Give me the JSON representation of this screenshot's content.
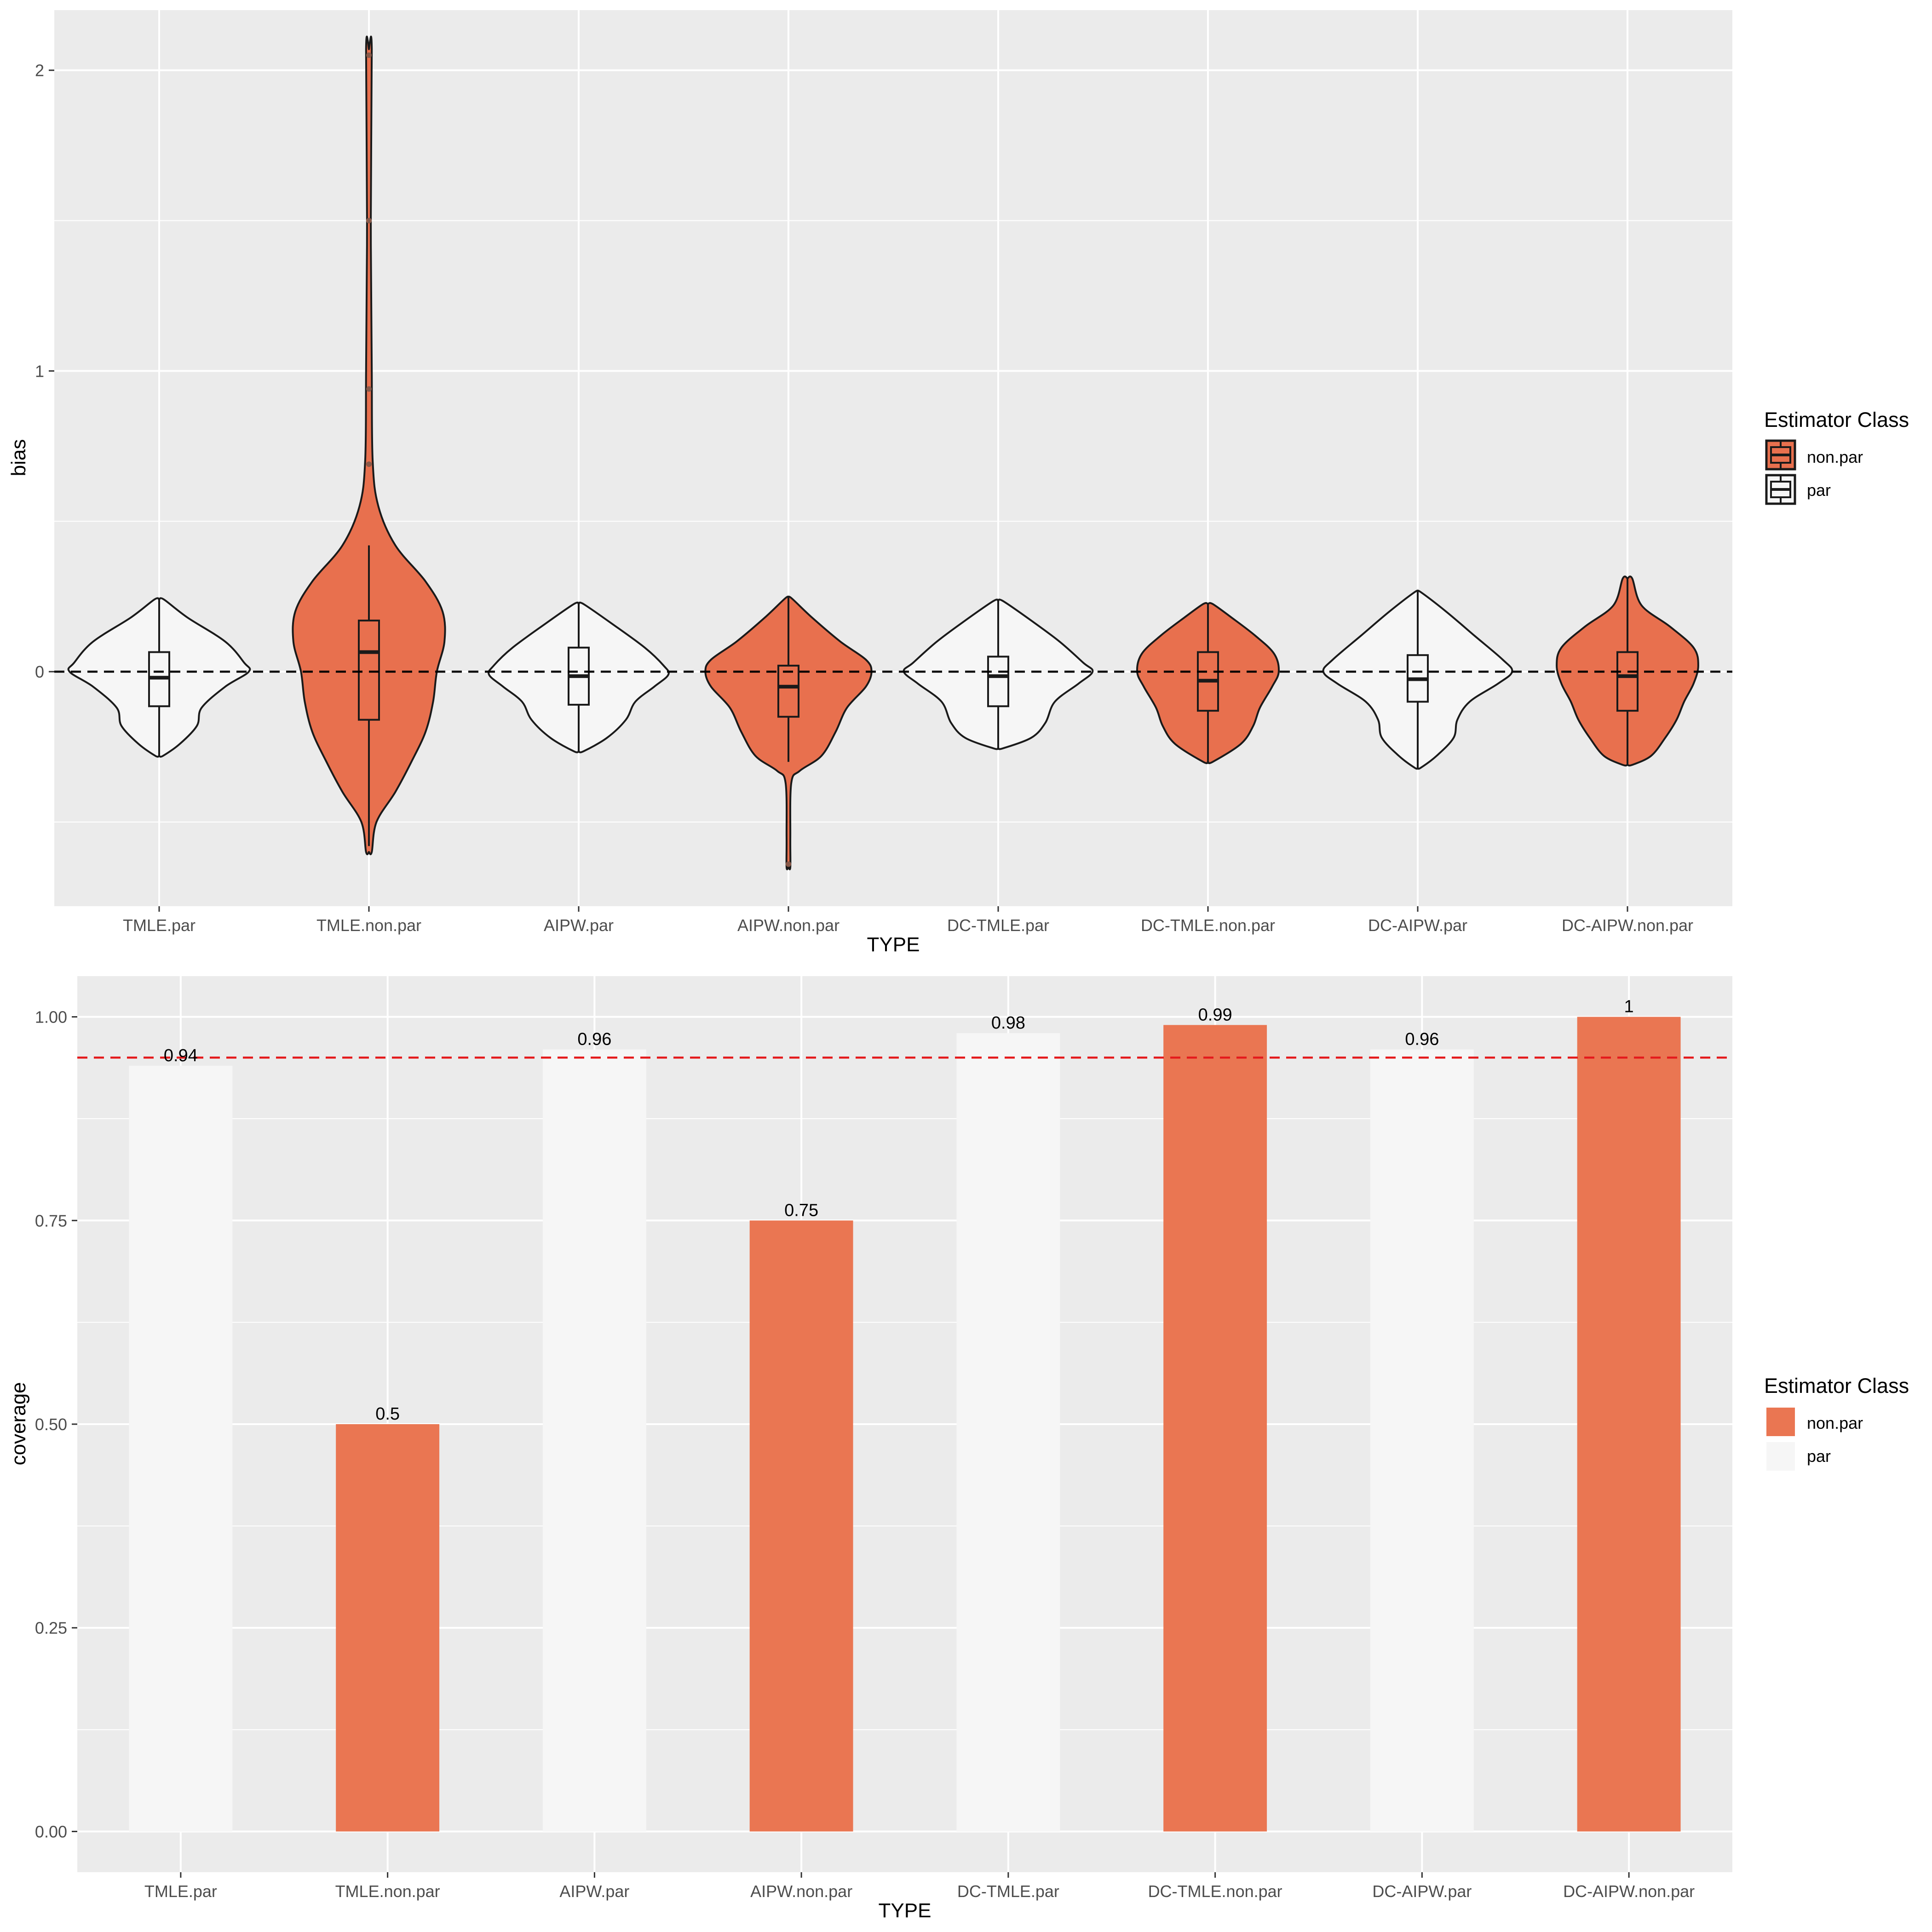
{
  "chart_data": [
    {
      "type": "violin",
      "title": "",
      "xlabel": "TYPE",
      "ylabel": "bias",
      "ylim": [
        -0.78,
        2.2
      ],
      "yticks": [
        0,
        1,
        2
      ],
      "ytick_labels": [
        "0",
        "1",
        "2"
      ],
      "reference_line": {
        "y": 0,
        "style": "dashed",
        "color": "#000000"
      },
      "categories": [
        "TMLE.par",
        "TMLE.non.par",
        "AIPW.par",
        "AIPW.non.par",
        "DC-TMLE.par",
        "DC-TMLE.non.par",
        "DC-AIPW.par",
        "DC-AIPW.non.par"
      ],
      "classes": [
        "par",
        "non.par",
        "par",
        "non.par",
        "par",
        "non.par",
        "par",
        "non.par"
      ],
      "boxes": [
        {
          "min": -0.28,
          "q1": -0.115,
          "median": -0.02,
          "q3": 0.065,
          "max": 0.24
        },
        {
          "min": -0.58,
          "q1": -0.16,
          "median": 0.065,
          "q3": 0.17,
          "max": 0.42,
          "outliers": [
            0.69,
            0.94,
            1.5,
            2.05
          ]
        },
        {
          "min": -0.265,
          "q1": -0.11,
          "median": -0.015,
          "q3": 0.08,
          "max": 0.225
        },
        {
          "min": -0.3,
          "q1": -0.15,
          "median": -0.05,
          "q3": 0.02,
          "max": 0.245,
          "outliers": [
            -0.64
          ]
        },
        {
          "min": -0.255,
          "q1": -0.115,
          "median": -0.015,
          "q3": 0.05,
          "max": 0.235
        },
        {
          "min": -0.3,
          "q1": -0.13,
          "median": -0.03,
          "q3": 0.065,
          "max": 0.225
        },
        {
          "min": -0.32,
          "q1": -0.1,
          "median": -0.025,
          "q3": 0.055,
          "max": 0.265
        },
        {
          "min": -0.31,
          "q1": -0.13,
          "median": -0.015,
          "q3": 0.065,
          "max": 0.31
        }
      ],
      "violins": [
        {
          "top": 0.24,
          "bottom": -0.28,
          "profile": [
            [
              0.24,
              0.05
            ],
            [
              0.18,
              0.3
            ],
            [
              0.1,
              0.7
            ],
            [
              0.03,
              0.9
            ],
            [
              0.0,
              0.95
            ],
            [
              -0.05,
              0.7
            ],
            [
              -0.12,
              0.45
            ],
            [
              -0.18,
              0.4
            ],
            [
              -0.24,
              0.22
            ],
            [
              -0.28,
              0.04
            ]
          ]
        },
        {
          "top": 2.07,
          "bottom": -0.6,
          "profile": [
            [
              2.07,
              0.03
            ],
            [
              1.5,
              0.02
            ],
            [
              1.0,
              0.03
            ],
            [
              0.7,
              0.04
            ],
            [
              0.55,
              0.1
            ],
            [
              0.42,
              0.28
            ],
            [
              0.3,
              0.6
            ],
            [
              0.2,
              0.78
            ],
            [
              0.1,
              0.8
            ],
            [
              0.0,
              0.72
            ],
            [
              -0.1,
              0.68
            ],
            [
              -0.2,
              0.6
            ],
            [
              -0.3,
              0.45
            ],
            [
              -0.4,
              0.28
            ],
            [
              -0.5,
              0.08
            ],
            [
              -0.6,
              0.03
            ]
          ]
        },
        {
          "top": 0.225,
          "bottom": -0.265,
          "profile": [
            [
              0.225,
              0.05
            ],
            [
              0.16,
              0.35
            ],
            [
              0.08,
              0.7
            ],
            [
              0.02,
              0.9
            ],
            [
              -0.01,
              0.95
            ],
            [
              -0.05,
              0.8
            ],
            [
              -0.1,
              0.6
            ],
            [
              -0.16,
              0.5
            ],
            [
              -0.22,
              0.3
            ],
            [
              -0.265,
              0.05
            ]
          ]
        },
        {
          "top": 0.245,
          "bottom": -0.65,
          "profile": [
            [
              0.245,
              0.03
            ],
            [
              0.18,
              0.25
            ],
            [
              0.1,
              0.55
            ],
            [
              0.04,
              0.82
            ],
            [
              0.0,
              0.88
            ],
            [
              -0.05,
              0.82
            ],
            [
              -0.12,
              0.62
            ],
            [
              -0.2,
              0.5
            ],
            [
              -0.28,
              0.35
            ],
            [
              -0.33,
              0.12
            ],
            [
              -0.37,
              0.03
            ],
            [
              -0.55,
              0.02
            ],
            [
              -0.65,
              0.02
            ]
          ]
        },
        {
          "top": 0.235,
          "bottom": -0.255,
          "profile": [
            [
              0.235,
              0.05
            ],
            [
              0.17,
              0.35
            ],
            [
              0.1,
              0.65
            ],
            [
              0.03,
              0.9
            ],
            [
              0.0,
              1.0
            ],
            [
              -0.04,
              0.85
            ],
            [
              -0.1,
              0.6
            ],
            [
              -0.17,
              0.5
            ],
            [
              -0.22,
              0.35
            ],
            [
              -0.255,
              0.05
            ]
          ]
        },
        {
          "top": 0.225,
          "bottom": -0.3,
          "profile": [
            [
              0.225,
              0.05
            ],
            [
              0.18,
              0.25
            ],
            [
              0.12,
              0.5
            ],
            [
              0.06,
              0.7
            ],
            [
              0.0,
              0.75
            ],
            [
              -0.05,
              0.68
            ],
            [
              -0.12,
              0.55
            ],
            [
              -0.18,
              0.48
            ],
            [
              -0.24,
              0.35
            ],
            [
              -0.3,
              0.05
            ]
          ]
        },
        {
          "top": 0.265,
          "bottom": -0.32,
          "profile": [
            [
              0.265,
              0.03
            ],
            [
              0.2,
              0.3
            ],
            [
              0.12,
              0.6
            ],
            [
              0.04,
              0.9
            ],
            [
              0.0,
              1.0
            ],
            [
              -0.04,
              0.85
            ],
            [
              -0.1,
              0.55
            ],
            [
              -0.16,
              0.42
            ],
            [
              -0.22,
              0.38
            ],
            [
              -0.28,
              0.2
            ],
            [
              -0.32,
              0.03
            ]
          ]
        },
        {
          "top": 0.31,
          "bottom": -0.31,
          "profile": [
            [
              0.31,
              0.05
            ],
            [
              0.22,
              0.15
            ],
            [
              0.15,
              0.45
            ],
            [
              0.08,
              0.7
            ],
            [
              0.02,
              0.75
            ],
            [
              -0.04,
              0.7
            ],
            [
              -0.1,
              0.6
            ],
            [
              -0.16,
              0.52
            ],
            [
              -0.22,
              0.4
            ],
            [
              -0.28,
              0.25
            ],
            [
              -0.31,
              0.05
            ]
          ]
        }
      ]
    },
    {
      "type": "bar",
      "title": "",
      "xlabel": "TYPE",
      "ylabel": "coverage",
      "ylim": [
        -0.05,
        1.05
      ],
      "yticks": [
        0,
        0.25,
        0.5,
        0.75,
        1
      ],
      "ytick_labels": [
        "0.00",
        "0.25",
        "0.50",
        "0.75",
        "1.00"
      ],
      "reference_line": {
        "y": 0.95,
        "style": "dashed",
        "color": "#e41a1c"
      },
      "categories": [
        "TMLE.par",
        "TMLE.non.par",
        "AIPW.par",
        "AIPW.non.par",
        "DC-TMLE.par",
        "DC-TMLE.non.par",
        "DC-AIPW.par",
        "DC-AIPW.non.par"
      ],
      "classes": [
        "par",
        "non.par",
        "par",
        "non.par",
        "par",
        "non.par",
        "par",
        "non.par"
      ],
      "values": [
        0.94,
        0.5,
        0.96,
        0.75,
        0.98,
        0.99,
        0.96,
        1
      ],
      "value_labels": [
        "0.94",
        "0.5",
        "0.96",
        "0.75",
        "0.98",
        "0.99",
        "0.96",
        "1"
      ]
    }
  ],
  "legends": [
    {
      "title": "Estimator Class",
      "items": [
        "non.par",
        "par"
      ]
    },
    {
      "title": "Estimator Class",
      "items": [
        "non.par",
        "par"
      ]
    }
  ],
  "colors": {
    "non_par": "#e8704e",
    "non_par_bar": "#ea7652",
    "par": "#f6f6f6",
    "panel": "#ebebeb",
    "grid": "#ffffff",
    "outline": "#1a1a1a",
    "ref_top": "#000000",
    "ref_bottom": "#e41a1c"
  }
}
